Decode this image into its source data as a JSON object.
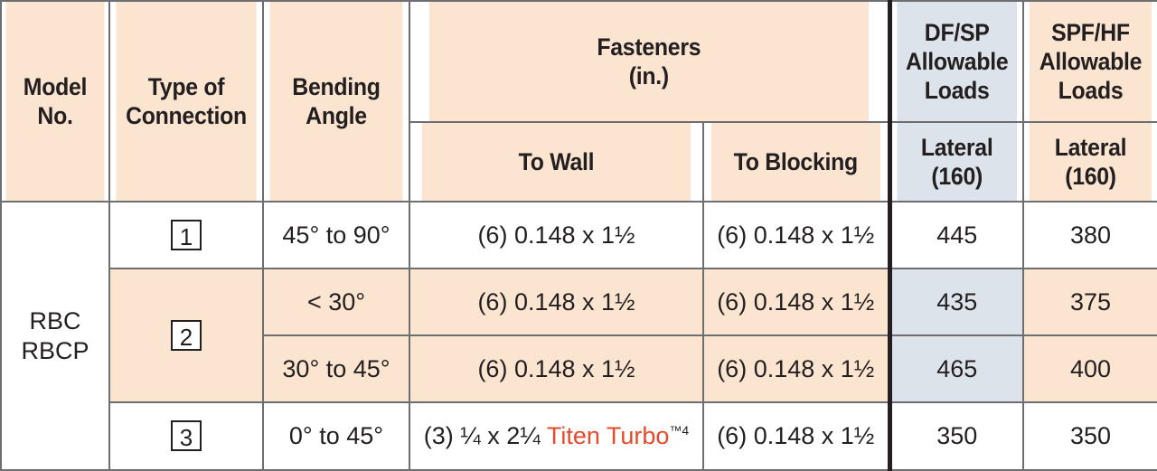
{
  "header": {
    "model_no": [
      "Model",
      "No."
    ],
    "type_of_connection": [
      "Type of",
      "Connection"
    ],
    "bending_angle": [
      "Bending",
      "Angle"
    ],
    "fasteners": [
      "Fasteners",
      "(in.)"
    ],
    "to_wall": "To Wall",
    "to_blocking": "To Blocking",
    "df_sp": [
      "DF/SP",
      "Allowable",
      "Loads"
    ],
    "spf_hf": [
      "SPF/HF",
      "Allowable",
      "Loads"
    ],
    "lateral_df": [
      "Lateral",
      "(160)"
    ],
    "lateral_spf": [
      "Lateral",
      "(160)"
    ]
  },
  "model": [
    "RBC",
    "RBCP"
  ],
  "rows": [
    {
      "connection": "1",
      "angle": "45° to 90°",
      "to_wall": "(6) 0.148 x 1½",
      "to_blocking": "(6) 0.148 x 1½",
      "df": "445",
      "spf": "380"
    },
    {
      "connection": "2",
      "angle": "< 30°",
      "to_wall": "(6) 0.148 x 1½",
      "to_blocking": "(6) 0.148 x 1½",
      "df": "435",
      "spf": "375"
    },
    {
      "angle": "30° to 45°",
      "to_wall": "(6) 0.148 x 1½",
      "to_blocking": "(6) 0.148 x 1½",
      "df": "465",
      "spf": "400"
    },
    {
      "connection": "3",
      "angle": "0° to 45°",
      "to_wall_prefix": "(3) ¼ x 2¼ ",
      "to_wall_brand": "Titen Turbo",
      "to_wall_tm": "™",
      "to_wall_footnote": "4",
      "to_blocking": "(6) 0.148 x 1½",
      "df": "350",
      "spf": "350"
    }
  ],
  "colors": {
    "header_bg": "#fbe5d1",
    "df_bg": "#dde3ea",
    "brand": "#e8492b",
    "border": "#6d6e71"
  }
}
